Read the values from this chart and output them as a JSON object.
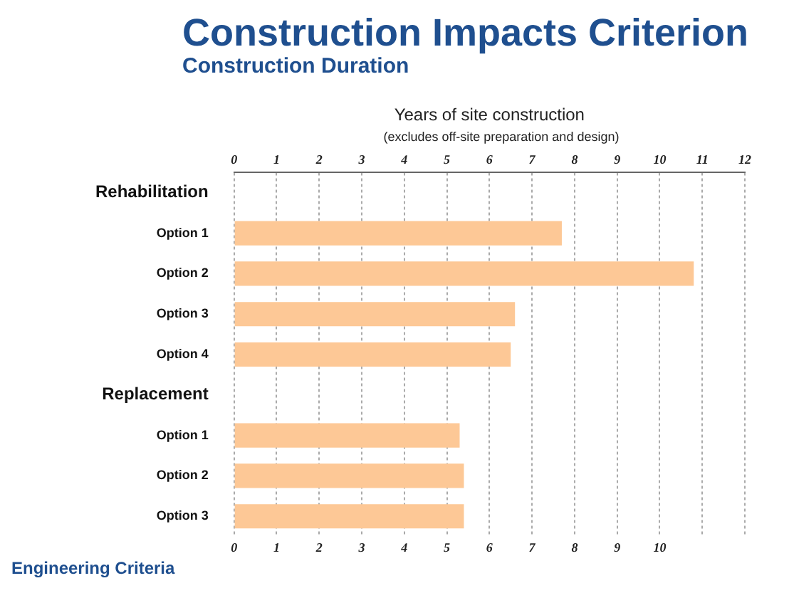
{
  "chart_data": {
    "type": "bar",
    "orientation": "horizontal",
    "title": "Construction Impacts Criterion",
    "subtitle": "Construction Duration",
    "x2label": "Years of site construction",
    "annotations": [
      "(excludes off-site preparation and design)",
      "Engineering Criteria"
    ],
    "categories": [
      "Rehabilitation",
      "Option 1",
      "Option 2",
      "Option 3",
      "Option 4",
      "Replacement",
      "Option 1",
      "Option 2",
      "Option 3"
    ],
    "values": [
      null,
      7.7,
      10.8,
      6.6,
      6.5,
      null,
      5.3,
      5.4,
      5.4
    ],
    "color": "#fdc896",
    "xlim": [
      0,
      12
    ],
    "xticks": [
      0,
      1,
      2,
      3,
      4,
      5,
      6,
      7,
      8,
      9,
      10,
      {
        "value": 11,
        "label": null
      },
      {
        "value": 12,
        "label": null
      }
    ],
    "x2lim": [
      0,
      12
    ],
    "x2ticks": [
      0,
      1,
      2,
      3,
      4,
      5,
      6,
      7,
      8,
      9,
      10,
      11,
      12
    ],
    "grid": "x"
  }
}
